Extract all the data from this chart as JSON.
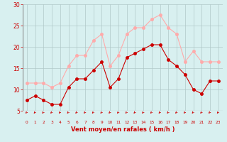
{
  "hours": [
    0,
    1,
    2,
    3,
    4,
    5,
    6,
    7,
    8,
    9,
    10,
    11,
    12,
    13,
    14,
    15,
    16,
    17,
    18,
    19,
    20,
    21,
    22,
    23
  ],
  "wind_avg": [
    7.5,
    8.5,
    7.5,
    6.5,
    6.5,
    10.5,
    12.5,
    12.5,
    14.5,
    16.5,
    10.5,
    12.5,
    17.5,
    18.5,
    19.5,
    20.5,
    20.5,
    17.0,
    15.5,
    13.5,
    10.0,
    9.0,
    12.0,
    12.0
  ],
  "wind_gust": [
    11.5,
    11.5,
    11.5,
    10.5,
    11.5,
    15.5,
    18.0,
    18.0,
    21.5,
    23.0,
    15.5,
    18.0,
    23.0,
    24.5,
    24.5,
    26.5,
    27.5,
    24.5,
    23.0,
    16.5,
    19.0,
    16.5,
    16.5,
    16.5
  ],
  "avg_color": "#cc0000",
  "gust_color": "#ffaaaa",
  "bg_color": "#d8f0f0",
  "grid_color": "#b0c8c8",
  "xlabel": "Vent moyen/en rafales ( km/h )",
  "xlabel_color": "#cc0000",
  "tick_color": "#cc0000",
  "ylim": [
    5,
    30
  ],
  "yticks": [
    5,
    10,
    15,
    20,
    25,
    30
  ],
  "xlim": [
    -0.5,
    23.5
  ],
  "marker_size": 2.5,
  "arrow_color": "#cc0000"
}
